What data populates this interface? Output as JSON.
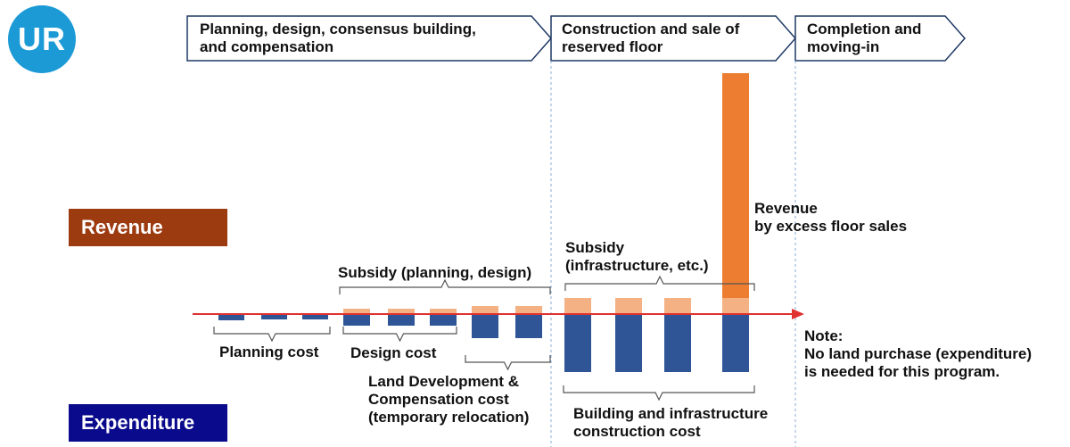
{
  "logo": {
    "text": "UR"
  },
  "phases": [
    {
      "label": "Planning, design, consensus building,\nand compensation"
    },
    {
      "label": "Construction and sale  of\nreserved floor"
    },
    {
      "label": "Completion and\nmoving-in"
    }
  ],
  "categories": {
    "revenue": "Revenue",
    "expenditure": "Expenditure"
  },
  "labels": {
    "subsidy_planning": "Subsidy (planning, design)",
    "subsidy_infra": "Subsidy\n(infrastructure, etc.)",
    "revenue_excess": "Revenue\nby excess floor sales",
    "planning_cost": "Planning cost",
    "design_cost": "Design cost",
    "land_dev": "Land Development &\nCompensation cost\n(temporary relocation)",
    "building_cost": "Building and infrastructure\nconstruction cost",
    "note": "Note:\nNo land purchase (expenditure)\nis needed for this program."
  },
  "colors": {
    "logo": "#1b9ad6",
    "revenue_box": "#9c3a10",
    "expenditure_box": "#0a0a8c",
    "subsidy_bar": "#f4b183",
    "revenue_bar": "#ed7d31",
    "expenditure_bar": "#2f5597",
    "axis_arrow": "#e03030",
    "divider": "#8aaed6",
    "bracket": "#555555",
    "phase_border": "#1f3864"
  }
}
